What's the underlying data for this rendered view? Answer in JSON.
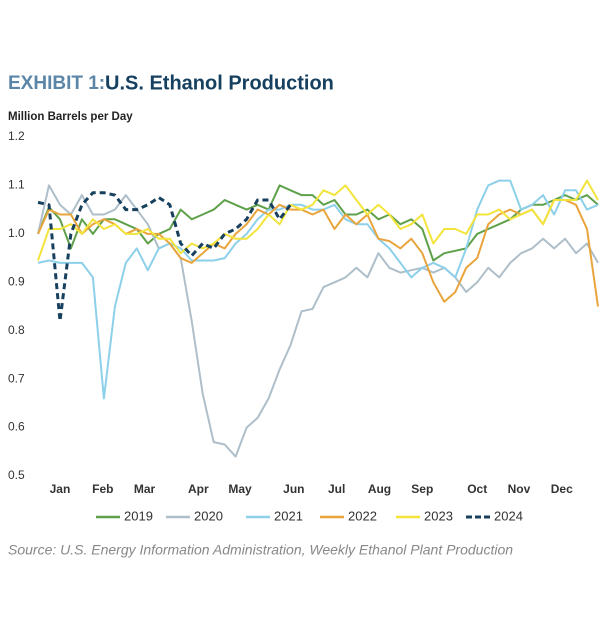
{
  "chart_data": {
    "type": "line",
    "title_prefix": "EXHIBIT 1:",
    "title": "U.S. Ethanol Production",
    "y_label": "Million Barrels per Day",
    "source": "Source: U.S. Energy Information Administration, Weekly Ethanol Plant Production",
    "x": [
      1,
      2,
      3,
      4,
      5,
      6,
      7,
      8,
      9,
      10,
      11,
      12,
      13,
      14,
      15,
      16,
      17,
      18,
      19,
      20,
      21,
      22,
      23,
      24,
      25,
      26,
      27,
      28,
      29,
      30,
      31,
      32,
      33,
      34,
      35,
      36,
      37,
      38,
      39,
      40,
      41,
      42,
      43,
      44,
      45,
      46,
      47,
      48,
      49,
      50,
      51,
      52
    ],
    "xlim": [
      1,
      52
    ],
    "xticks": [
      {
        "value": 3,
        "label": "Jan"
      },
      {
        "value": 6.9,
        "label": "Feb"
      },
      {
        "value": 10.7,
        "label": "Mar"
      },
      {
        "value": 15.6,
        "label": "Apr"
      },
      {
        "value": 19.4,
        "label": "May"
      },
      {
        "value": 24.3,
        "label": "Jun"
      },
      {
        "value": 28.2,
        "label": "Jul"
      },
      {
        "value": 32.1,
        "label": "Aug"
      },
      {
        "value": 36,
        "label": "Sep"
      },
      {
        "value": 41,
        "label": "Oct"
      },
      {
        "value": 44.8,
        "label": "Nov"
      },
      {
        "value": 48.7,
        "label": "Dec"
      }
    ],
    "ylim": [
      0.5,
      1.2
    ],
    "yticks": [
      1.2,
      1.1,
      {
        "value": 1,
        "label": "1.0"
      },
      0.9,
      0.8,
      0.7,
      0.6,
      0.5
    ],
    "grid": false,
    "legend": "bottom",
    "series": [
      {
        "name": "2019",
        "color": "#5fa04a",
        "dashed": false,
        "values": [
          1.0,
          1.055,
          1.03,
          0.97,
          1.03,
          1.0,
          1.03,
          1.03,
          1.02,
          1.01,
          0.98,
          1.0,
          1.01,
          1.05,
          1.03,
          1.04,
          1.05,
          1.07,
          1.06,
          1.05,
          1.06,
          1.05,
          1.1,
          1.09,
          1.08,
          1.08,
          1.06,
          1.07,
          1.04,
          1.04,
          1.05,
          1.03,
          1.04,
          1.02,
          1.03,
          1.01,
          0.945,
          0.96,
          0.965,
          0.97,
          1.0,
          1.01,
          1.02,
          1.03,
          1.05,
          1.06,
          1.06,
          1.07,
          1.08,
          1.07,
          1.08,
          1.06
        ]
      },
      {
        "name": "2020",
        "color": "#aebfca",
        "dashed": false,
        "values": [
          1.0,
          1.1,
          1.06,
          1.04,
          1.08,
          1.04,
          1.04,
          1.05,
          1.08,
          1.05,
          1.02,
          0.97,
          0.98,
          0.95,
          0.82,
          0.67,
          0.57,
          0.565,
          0.54,
          0.6,
          0.62,
          0.66,
          0.72,
          0.77,
          0.84,
          0.845,
          0.89,
          0.9,
          0.91,
          0.93,
          0.91,
          0.96,
          0.93,
          0.92,
          0.925,
          0.93,
          0.92,
          0.93,
          0.91,
          0.88,
          0.9,
          0.93,
          0.91,
          0.94,
          0.96,
          0.97,
          0.99,
          0.97,
          0.99,
          0.96,
          0.98,
          0.94
        ]
      },
      {
        "name": "2021",
        "color": "#8dd0ea",
        "dashed": false,
        "values": [
          0.94,
          0.945,
          0.94,
          0.94,
          0.94,
          0.91,
          0.66,
          0.85,
          0.94,
          0.97,
          0.925,
          0.97,
          0.98,
          0.97,
          0.945,
          0.945,
          0.945,
          0.95,
          0.98,
          1.0,
          1.03,
          1.05,
          1.05,
          1.06,
          1.06,
          1.05,
          1.05,
          1.06,
          1.03,
          1.02,
          1.02,
          0.99,
          0.97,
          0.94,
          0.91,
          0.93,
          0.94,
          0.93,
          0.91,
          0.97,
          1.05,
          1.1,
          1.11,
          1.11,
          1.05,
          1.06,
          1.08,
          1.04,
          1.09,
          1.09,
          1.05,
          1.06
        ]
      },
      {
        "name": "2022",
        "color": "#e9a53c",
        "dashed": false,
        "values": [
          1.0,
          1.05,
          1.04,
          1.04,
          1.0,
          1.02,
          1.03,
          1.02,
          1.0,
          1.01,
          1.0,
          1.0,
          0.98,
          0.95,
          0.94,
          0.96,
          0.98,
          0.97,
          1.0,
          1.02,
          1.05,
          1.04,
          1.06,
          1.05,
          1.05,
          1.04,
          1.05,
          1.01,
          1.04,
          1.02,
          1.04,
          0.99,
          0.985,
          0.97,
          0.99,
          0.96,
          0.9,
          0.86,
          0.88,
          0.93,
          0.95,
          1.02,
          1.04,
          1.05,
          1.04,
          1.05,
          1.02,
          1.07,
          1.07,
          1.06,
          1.01,
          0.85
        ]
      },
      {
        "name": "2023",
        "color": "#f3e43c",
        "dashed": false,
        "values": [
          0.945,
          1.01,
          1.01,
          1.02,
          1.0,
          1.03,
          1.01,
          1.02,
          1.0,
          1.0,
          1.01,
          0.99,
          0.99,
          0.96,
          0.98,
          0.97,
          0.98,
          1.0,
          0.99,
          0.99,
          1.01,
          1.04,
          1.02,
          1.06,
          1.05,
          1.06,
          1.09,
          1.08,
          1.1,
          1.07,
          1.04,
          1.06,
          1.04,
          1.01,
          1.02,
          1.04,
          0.98,
          1.01,
          1.01,
          1.0,
          1.04,
          1.04,
          1.05,
          1.03,
          1.04,
          1.05,
          1.02,
          1.07,
          1.07,
          1.07,
          1.11,
          1.07
        ]
      },
      {
        "name": "2024",
        "color": "#17405f",
        "dashed": true,
        "values": [
          1.065,
          1.06,
          0.82,
          1.0,
          1.06,
          1.085,
          1.085,
          1.08,
          1.05,
          1.05,
          1.06,
          1.075,
          1.06,
          0.98,
          0.955,
          0.98,
          0.97,
          1.0,
          1.01,
          1.03,
          1.07,
          1.07,
          1.03,
          1.06,
          null,
          null,
          null,
          null,
          null,
          null,
          null,
          null,
          null,
          null,
          null,
          null,
          null,
          null,
          null,
          null,
          null,
          null,
          null,
          null,
          null,
          null,
          null,
          null,
          null,
          null,
          null,
          null
        ]
      }
    ]
  }
}
